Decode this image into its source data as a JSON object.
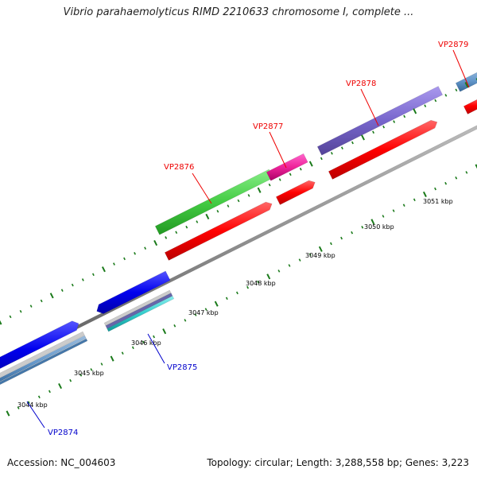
{
  "title": "Vibrio parahaemolyticus RIMD 2210633 chromosome I, complete ...",
  "footer": {
    "accession": "Accession: NC_004603",
    "summary": "Topology: circular; Length: 3,288,558 bp; Genes: 3,223"
  },
  "scale": {
    "tick_labels": [
      "3044 kbp",
      "3045 kbp",
      "3046 kbp",
      "3047 kbp",
      "3048 kbp",
      "3049 kbp",
      "3050 kbp",
      "3051 kbp"
    ]
  },
  "genes": {
    "VP2874": {
      "label": "VP2874",
      "color": "#0000cc"
    },
    "VP2875": {
      "label": "VP2875",
      "color": "#0000cc"
    },
    "VP2876": {
      "label": "VP2876",
      "color": "#ee0000"
    },
    "VP2877": {
      "label": "VP2877",
      "color": "#ee0000"
    },
    "VP2878": {
      "label": "VP2878",
      "color": "#ee0000"
    },
    "VP2879": {
      "label": "VP2879",
      "color": "#ee0000"
    }
  },
  "colors": {
    "forward_cds": "#ff0000",
    "reverse_cds": "#0000ee",
    "backbone": "#8c8c8c",
    "tick_marks": "#1a7a1a",
    "feature_green": "#44cc44",
    "feature_pink": "#ee2299",
    "feature_purple": "#7766cc",
    "feature_steel": "#6699cc",
    "feature_cyan": "#33cccc"
  }
}
